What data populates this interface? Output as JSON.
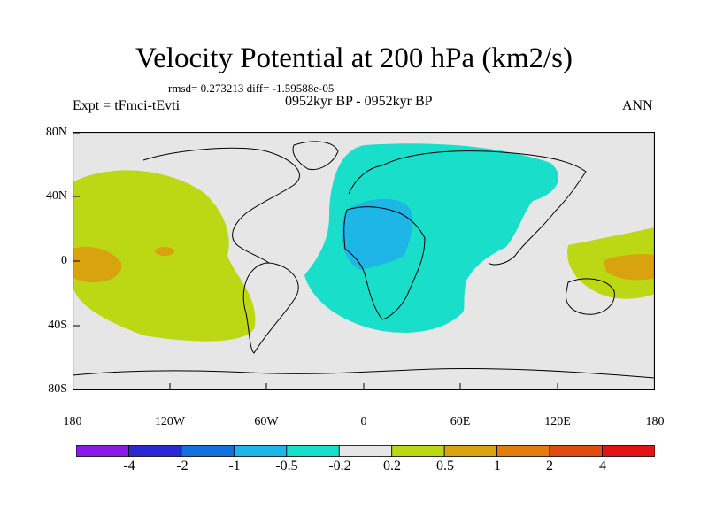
{
  "title": "Velocity Potential at 200 hPa (km2/s)",
  "stats": "rmsd= 0.273213  diff= -1.59588e-05",
  "left_label": "Expt = tFmci-tEvti",
  "center_label": "0952kyr BP - 0952kyr BP",
  "right_label": "ANN",
  "map": {
    "lat_labels": [
      "80N",
      "40N",
      "0",
      "40S",
      "80S"
    ],
    "lon_labels": [
      "180",
      "120W",
      "60W",
      "0",
      "60E",
      "120E",
      "180"
    ],
    "fill_colors": {
      "background": "#e6e6e6",
      "pos_0_2_to_0_5": "#bcd713",
      "pos_0_5_to_1": "#d9a20f",
      "neg_0_2_to_0_5": "#19deca",
      "neg_0_5_to_1": "#1eb6e6"
    }
  },
  "colorbar": {
    "labels": [
      "-4",
      "-2",
      "-1",
      "-0.5",
      "-0.2",
      "0.2",
      "0.5",
      "1",
      "2",
      "4"
    ],
    "colors": [
      "#8c1ae6",
      "#2a2ad2",
      "#1470dc",
      "#1eb6e6",
      "#19deca",
      "#e6e6e6",
      "#bcd713",
      "#d9a20f",
      "#e47d10",
      "#e04b12",
      "#e01414"
    ]
  }
}
